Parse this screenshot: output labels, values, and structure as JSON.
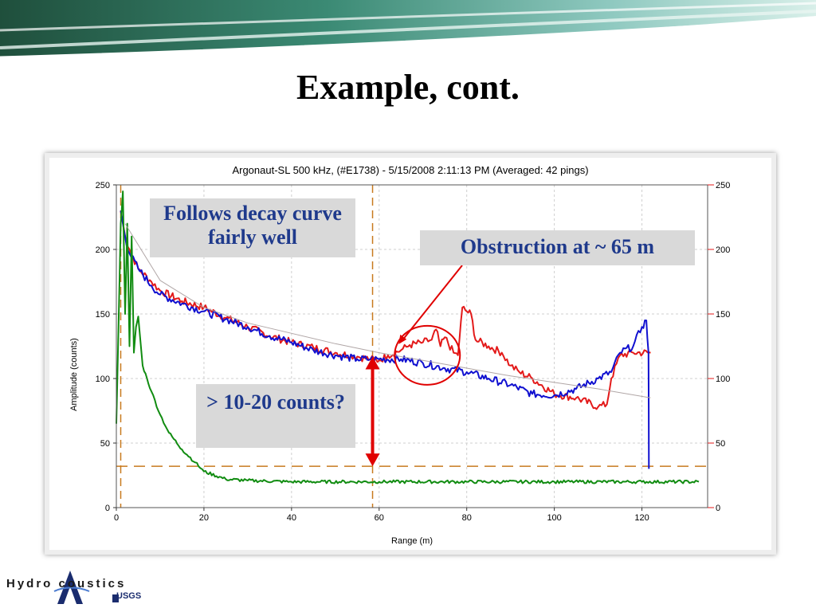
{
  "slide": {
    "title": "Example, cont.",
    "callouts": {
      "decay": "Follows decay curve fairly well",
      "obstruction": "Obstruction at ~ 65 m",
      "counts": "> 10-20 counts?"
    },
    "logo": {
      "text": "Hydro coustics",
      "sub": "USGS"
    }
  },
  "colors": {
    "red": "#e31a1a",
    "blue": "#1010d0",
    "green": "#118c11",
    "fit": "#b0a6a6",
    "guide": "#c87a1e",
    "callout_text": "#1f3a8c"
  },
  "chart_data": {
    "type": "line",
    "title": "Argonaut-SL 500 kHz, (#E1738)  -  5/15/2008 2:11:13 PM (Averaged: 42 pings)",
    "xlabel": "Range (m)",
    "ylabel": "Amplitude (counts)",
    "xlim": [
      0,
      135
    ],
    "ylim": [
      0,
      250
    ],
    "x_ticks": [
      0,
      20,
      40,
      60,
      80,
      100,
      120
    ],
    "y_ticks": [
      0,
      50,
      100,
      150,
      200,
      250
    ],
    "grid": "dashed",
    "right_axis_ticks": [
      0,
      50,
      100,
      150,
      200,
      250
    ],
    "series": [
      {
        "color": "red",
        "x": [
          1,
          2,
          3,
          5,
          8,
          10,
          15,
          20,
          25,
          30,
          35,
          40,
          45,
          50,
          55,
          58,
          60,
          62,
          65,
          67,
          70,
          72,
          73,
          74,
          75,
          77,
          78,
          79,
          80,
          81,
          82,
          85,
          88,
          90,
          92,
          95,
          100,
          105,
          110,
          112,
          113,
          115,
          118,
          122
        ],
        "y": [
          230,
          210,
          200,
          185,
          175,
          168,
          160,
          155,
          147,
          140,
          133,
          128,
          124,
          120,
          117,
          115,
          114,
          118,
          122,
          126,
          128,
          130,
          138,
          125,
          132,
          120,
          118,
          155,
          152,
          150,
          130,
          125,
          120,
          110,
          105,
          100,
          88,
          85,
          78,
          80,
          100,
          118,
          120,
          120
        ]
      },
      {
        "color": "blue",
        "x": [
          1,
          2,
          3,
          5,
          8,
          10,
          15,
          20,
          25,
          30,
          35,
          40,
          45,
          50,
          55,
          58,
          60,
          65,
          70,
          75,
          80,
          85,
          90,
          95,
          100,
          105,
          110,
          113,
          115,
          118,
          120,
          121,
          121.5,
          121.6
        ],
        "y": [
          230,
          210,
          197,
          185,
          172,
          165,
          158,
          152,
          146,
          140,
          133,
          128,
          122,
          118,
          115,
          115,
          115,
          115,
          112,
          108,
          105,
          100,
          95,
          88,
          87,
          92,
          100,
          105,
          120,
          125,
          140,
          145,
          120,
          30
        ]
      },
      {
        "color": "green",
        "x": [
          0,
          0.5,
          1,
          1.5,
          2,
          2.5,
          3,
          3.5,
          4,
          4.5,
          5,
          6,
          7,
          8,
          10,
          12,
          15,
          18,
          20,
          25,
          30,
          40,
          60,
          80,
          100,
          120,
          133
        ],
        "y": [
          65,
          140,
          220,
          245,
          150,
          220,
          125,
          210,
          120,
          140,
          148,
          110,
          100,
          90,
          72,
          58,
          45,
          35,
          28,
          22,
          21,
          20,
          20,
          20,
          20,
          20,
          20
        ]
      },
      {
        "color": "fit",
        "x": [
          2,
          10,
          20,
          30,
          40,
          50,
          60,
          70,
          80,
          90,
          100,
          110,
          122
        ],
        "y": [
          220,
          176,
          155,
          143,
          135,
          127,
          120,
          114,
          108,
          102,
          97,
          92,
          85
        ]
      }
    ],
    "guides": {
      "vertical_x": [
        1,
        58.5
      ],
      "horizontal_y": [
        32
      ]
    },
    "annotations": {
      "arrow_x": 58.5,
      "arrow_y": [
        117,
        32
      ],
      "circle_center": [
        71,
        118
      ]
    }
  }
}
